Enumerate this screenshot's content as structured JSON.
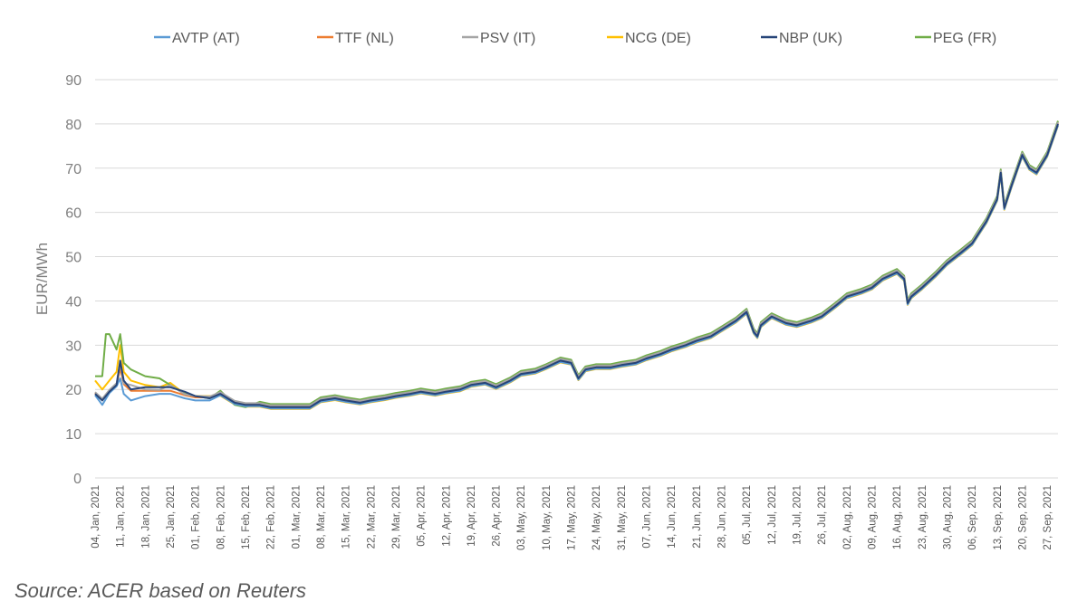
{
  "chart_data": {
    "type": "line",
    "title": "",
    "xlabel": "",
    "ylabel": "EUR/MWh",
    "ylim": [
      0,
      90
    ],
    "yticks": [
      0,
      10,
      20,
      30,
      40,
      50,
      60,
      70,
      80,
      90
    ],
    "grid": true,
    "legend_position": "top",
    "x_start_date": "04, Jan, 2021",
    "x_end_date": "30, Sep, 2021",
    "x_tick_labels": [
      "04, Jan, 2021",
      "11, Jan, 2021",
      "18, Jan, 2021",
      "25, Jan, 2021",
      "01, Feb, 2021",
      "08, Feb, 2021",
      "15, Feb, 2021",
      "22, Feb, 2021",
      "01, Mar, 2021",
      "08, Mar, 2021",
      "15, Mar, 2021",
      "22, Mar, 2021",
      "29, Mar, 2021",
      "05, Apr, 2021",
      "12, Apr, 2021",
      "19, Apr, 2021",
      "26, Apr, 2021",
      "03, May, 2021",
      "10, May, 2021",
      "17, May, 2021",
      "24, May, 2021",
      "31, May, 2021",
      "07, Jun, 2021",
      "14, Jun, 2021",
      "21, Jun, 2021",
      "28, Jun, 2021",
      "05, Jul, 2021",
      "12, Jul, 2021",
      "19, Jul, 2021",
      "26, Jul, 2021",
      "02, Aug, 2021",
      "09, Aug, 2021",
      "16, Aug, 2021",
      "23, Aug, 2021",
      "30, Aug, 2021",
      "06, Sep, 2021",
      "13, Sep, 2021",
      "20, Sep, 2021",
      "27, Sep, 2021"
    ],
    "base": {
      "x": [
        "04, Jan, 2021",
        "06, Jan, 2021",
        "08, Jan, 2021",
        "10, Jan, 2021",
        "11, Jan, 2021",
        "12, Jan, 2021",
        "14, Jan, 2021",
        "18, Jan, 2021",
        "22, Jan, 2021",
        "25, Jan, 2021",
        "29, Jan, 2021",
        "01, Feb, 2021",
        "05, Feb, 2021",
        "08, Feb, 2021",
        "12, Feb, 2021",
        "15, Feb, 2021",
        "19, Feb, 2021",
        "22, Feb, 2021",
        "26, Feb, 2021",
        "01, Mar, 2021",
        "05, Mar, 2021",
        "08, Mar, 2021",
        "12, Mar, 2021",
        "15, Mar, 2021",
        "19, Mar, 2021",
        "22, Mar, 2021",
        "26, Mar, 2021",
        "29, Mar, 2021",
        "02, Apr, 2021",
        "05, Apr, 2021",
        "09, Apr, 2021",
        "12, Apr, 2021",
        "16, Apr, 2021",
        "19, Apr, 2021",
        "23, Apr, 2021",
        "26, Apr, 2021",
        "30, Apr, 2021",
        "03, May, 2021",
        "07, May, 2021",
        "10, May, 2021",
        "14, May, 2021",
        "17, May, 2021",
        "19, May, 2021",
        "21, May, 2021",
        "24, May, 2021",
        "28, May, 2021",
        "31, May, 2021",
        "04, Jun, 2021",
        "07, Jun, 2021",
        "11, Jun, 2021",
        "14, Jun, 2021",
        "18, Jun, 2021",
        "21, Jun, 2021",
        "25, Jun, 2021",
        "28, Jun, 2021",
        "02, Jul, 2021",
        "05, Jul, 2021",
        "07, Jul, 2021",
        "08, Jul, 2021",
        "09, Jul, 2021",
        "12, Jul, 2021",
        "16, Jul, 2021",
        "19, Jul, 2021",
        "23, Jul, 2021",
        "26, Jul, 2021",
        "30, Jul, 2021",
        "02, Aug, 2021",
        "06, Aug, 2021",
        "09, Aug, 2021",
        "12, Aug, 2021",
        "16, Aug, 2021",
        "18, Aug, 2021",
        "19, Aug, 2021",
        "20, Aug, 2021",
        "23, Aug, 2021",
        "27, Aug, 2021",
        "30, Aug, 2021",
        "03, Sep, 2021",
        "06, Sep, 2021",
        "10, Sep, 2021",
        "13, Sep, 2021",
        "14, Sep, 2021",
        "15, Sep, 2021",
        "17, Sep, 2021",
        "20, Sep, 2021",
        "22, Sep, 2021",
        "24, Sep, 2021",
        "27, Sep, 2021",
        "30, Sep, 2021"
      ],
      "y": [
        19,
        17.5,
        19.5,
        21,
        24.5,
        21,
        19.5,
        19.5,
        19.5,
        19.5,
        18.5,
        18,
        18,
        19,
        17,
        16.5,
        16.5,
        16,
        16,
        16,
        16,
        17.5,
        18,
        17.5,
        17,
        17.5,
        18,
        18.5,
        19,
        19.5,
        19,
        19.5,
        20,
        21,
        21.5,
        20.5,
        22,
        23.5,
        24,
        25,
        26.5,
        26,
        22.5,
        24.5,
        25,
        25,
        25.5,
        26,
        27,
        28,
        29,
        30,
        31,
        32,
        33.5,
        35.5,
        37.5,
        33,
        32,
        34.5,
        36.5,
        35,
        34.5,
        35.5,
        36.5,
        39,
        41,
        42,
        43,
        45,
        46.5,
        45,
        39.5,
        41,
        43,
        46,
        48.5,
        51,
        53,
        58,
        63,
        69,
        61,
        66,
        73,
        70,
        69,
        73,
        80
      ]
    },
    "series": [
      {
        "name": "AVTP (AT)",
        "color": "#5b9bd5",
        "overrides": {
          "06, Jan, 2021": 16.5,
          "11, Jan, 2021": 22.5,
          "12, Jan, 2021": 19,
          "14, Jan, 2021": 17.5,
          "18, Jan, 2021": 18.5,
          "22, Jan, 2021": 19,
          "25, Jan, 2021": 19,
          "29, Jan, 2021": 18,
          "01, Feb, 2021": 17.5,
          "05, Feb, 2021": 17.5
        },
        "offset": -0.3
      },
      {
        "name": "TTF (NL)",
        "color": "#ed7d31",
        "overrides": {},
        "offset": 0.2
      },
      {
        "name": "PSV (IT)",
        "color": "#a5a5a5",
        "overrides": {
          "11, Jan, 2021": 26,
          "14, Jan, 2021": 21,
          "18, Jan, 2021": 20,
          "25, Jan, 2021": 21,
          "01, Feb, 2021": 18.5
        },
        "offset": 0.4
      },
      {
        "name": "NCG (DE)",
        "color": "#ffc000",
        "overrides": {
          "04, Jan, 2021": 22,
          "06, Jan, 2021": 20,
          "08, Jan, 2021": 22,
          "10, Jan, 2021": 24,
          "11, Jan, 2021": 30,
          "12, Jan, 2021": 24,
          "14, Jan, 2021": 22,
          "18, Jan, 2021": 21,
          "22, Jan, 2021": 20.5,
          "25, Jan, 2021": 21.5,
          "29, Jan, 2021": 19,
          "01, Feb, 2021": 18.5,
          "05, Feb, 2021": 18.5
        },
        "offset": -0.4
      },
      {
        "name": "NBP (UK)",
        "color": "#264478",
        "overrides": {
          "11, Jan, 2021": 26.5,
          "12, Jan, 2021": 22,
          "14, Jan, 2021": 20,
          "18, Jan, 2021": 20.5,
          "22, Jan, 2021": 20.5,
          "25, Jan, 2021": 20.5,
          "29, Jan, 2021": 19.5,
          "01, Feb, 2021": 18.5
        },
        "offset": 0.0
      },
      {
        "name": "PEG (FR)",
        "color": "#70ad47",
        "overrides": {
          "04, Jan, 2021": 23,
          "06, Jan, 2021": 23,
          "07, Jan, 2021": 32.5,
          "08, Jan, 2021": 32.5,
          "10, Jan, 2021": 29,
          "11, Jan, 2021": 32.5,
          "12, Jan, 2021": 26,
          "14, Jan, 2021": 24.5,
          "18, Jan, 2021": 23,
          "22, Jan, 2021": 22.5,
          "25, Jan, 2021": 21,
          "29, Jan, 2021": 19,
          "01, Feb, 2021": 18.5,
          "05, Feb, 2021": 18,
          "12, Feb, 2021": 16.5,
          "15, Feb, 2021": 16
        },
        "offset": 0.7
      }
    ]
  },
  "source_text": "Source: ACER based on Reuters"
}
